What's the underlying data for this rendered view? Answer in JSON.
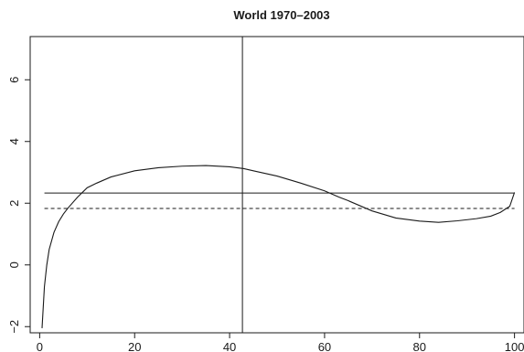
{
  "chart_data": {
    "type": "line",
    "title": "World 1970–2003",
    "xlabel": "",
    "ylabel": "",
    "xlim": [
      -2,
      102
    ],
    "ylim": [
      -2.2,
      7.4
    ],
    "x_ticks": [
      0,
      20,
      40,
      60,
      80,
      100
    ],
    "y_ticks": [
      -2,
      0,
      2,
      4,
      6
    ],
    "grid": false,
    "series": [
      {
        "style": "solid-curve",
        "x": [
          0.5,
          1,
          1.5,
          2,
          3,
          4,
          5,
          6,
          8,
          10,
          12,
          15,
          20,
          25,
          30,
          35,
          40,
          43,
          45,
          50,
          55,
          60,
          63,
          65,
          70,
          75,
          80,
          84,
          88,
          92,
          95,
          97,
          99,
          100
        ],
        "y": [
          -2.05,
          -0.7,
          0.0,
          0.5,
          1.05,
          1.4,
          1.65,
          1.85,
          2.2,
          2.5,
          2.65,
          2.85,
          3.05,
          3.15,
          3.2,
          3.22,
          3.18,
          3.12,
          3.05,
          2.88,
          2.65,
          2.4,
          2.2,
          2.08,
          1.75,
          1.52,
          1.42,
          1.38,
          1.43,
          1.5,
          1.58,
          1.7,
          1.9,
          2.35
        ]
      }
    ],
    "horizontal_lines": [
      {
        "style": "solid",
        "y": 2.33,
        "x": [
          1,
          100
        ]
      },
      {
        "style": "dashed",
        "y": 1.83,
        "x": [
          1,
          100
        ]
      }
    ],
    "vertical_lines": [
      {
        "style": "solid",
        "x": 42.7
      }
    ]
  }
}
